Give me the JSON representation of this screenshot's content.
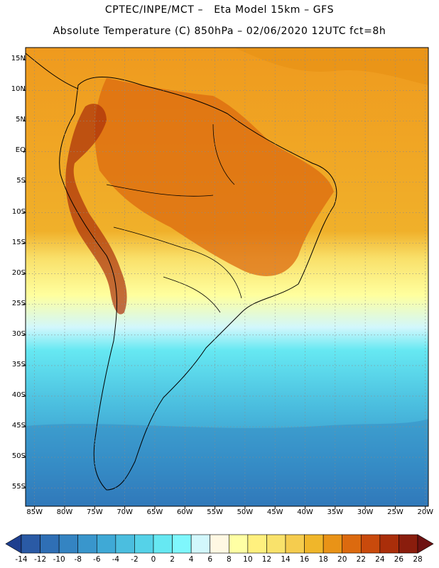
{
  "header": {
    "line1": "CPTEC/INPE/MCT –   Eta Model 15km – GFS",
    "line2": "Absolute Temperature (C) 850hPa – 02/06/2020 12UTC fct=8h"
  },
  "map": {
    "lat_ticks": [
      {
        "label": "15N",
        "value": 15
      },
      {
        "label": "10N",
        "value": 10
      },
      {
        "label": "5N",
        "value": 5
      },
      {
        "label": "EQ",
        "value": 0
      },
      {
        "label": "5S",
        "value": -5
      },
      {
        "label": "10S",
        "value": -10
      },
      {
        "label": "15S",
        "value": -15
      },
      {
        "label": "20S",
        "value": -20
      },
      {
        "label": "25S",
        "value": -25
      },
      {
        "label": "30S",
        "value": -30
      },
      {
        "label": "35S",
        "value": -35
      },
      {
        "label": "40S",
        "value": -40
      },
      {
        "label": "45S",
        "value": -45
      },
      {
        "label": "50S",
        "value": -50
      },
      {
        "label": "55S",
        "value": -55
      }
    ],
    "lon_ticks": [
      {
        "label": "85W",
        "value": -85
      },
      {
        "label": "80W",
        "value": -80
      },
      {
        "label": "75W",
        "value": -75
      },
      {
        "label": "70W",
        "value": -70
      },
      {
        "label": "65W",
        "value": -65
      },
      {
        "label": "60W",
        "value": -60
      },
      {
        "label": "55W",
        "value": -55
      },
      {
        "label": "50W",
        "value": -50
      },
      {
        "label": "45W",
        "value": -45
      },
      {
        "label": "40W",
        "value": -40
      },
      {
        "label": "35W",
        "value": -35
      },
      {
        "label": "30W",
        "value": -30
      },
      {
        "label": "25W",
        "value": -25
      },
      {
        "label": "20W",
        "value": -20
      }
    ],
    "extent": {
      "lon_min": -86.5,
      "lon_max": -19.5,
      "lat_min": -58,
      "lat_max": 17
    }
  },
  "colorbar": {
    "labels": [
      "-14",
      "-12",
      "-10",
      "-8",
      "-6",
      "-4",
      "-2",
      "0",
      "2",
      "4",
      "6",
      "8",
      "10",
      "12",
      "14",
      "16",
      "18",
      "20",
      "22",
      "24",
      "26",
      "28"
    ],
    "colors": [
      "#1e3f8f",
      "#2a5aa5",
      "#2f6fb5",
      "#3484c2",
      "#3996cc",
      "#3fa9d6",
      "#4bbedf",
      "#55d2e8",
      "#66e8f2",
      "#7ff7fd",
      "#d2f7fc",
      "#fff8e3",
      "#ffffa4",
      "#fff07e",
      "#f9e26b",
      "#f5cc4e",
      "#f0b62a",
      "#e99317",
      "#dc6a0f",
      "#c94a0c",
      "#aa2e0a",
      "#8a1d0d",
      "#6e1212"
    ]
  }
}
